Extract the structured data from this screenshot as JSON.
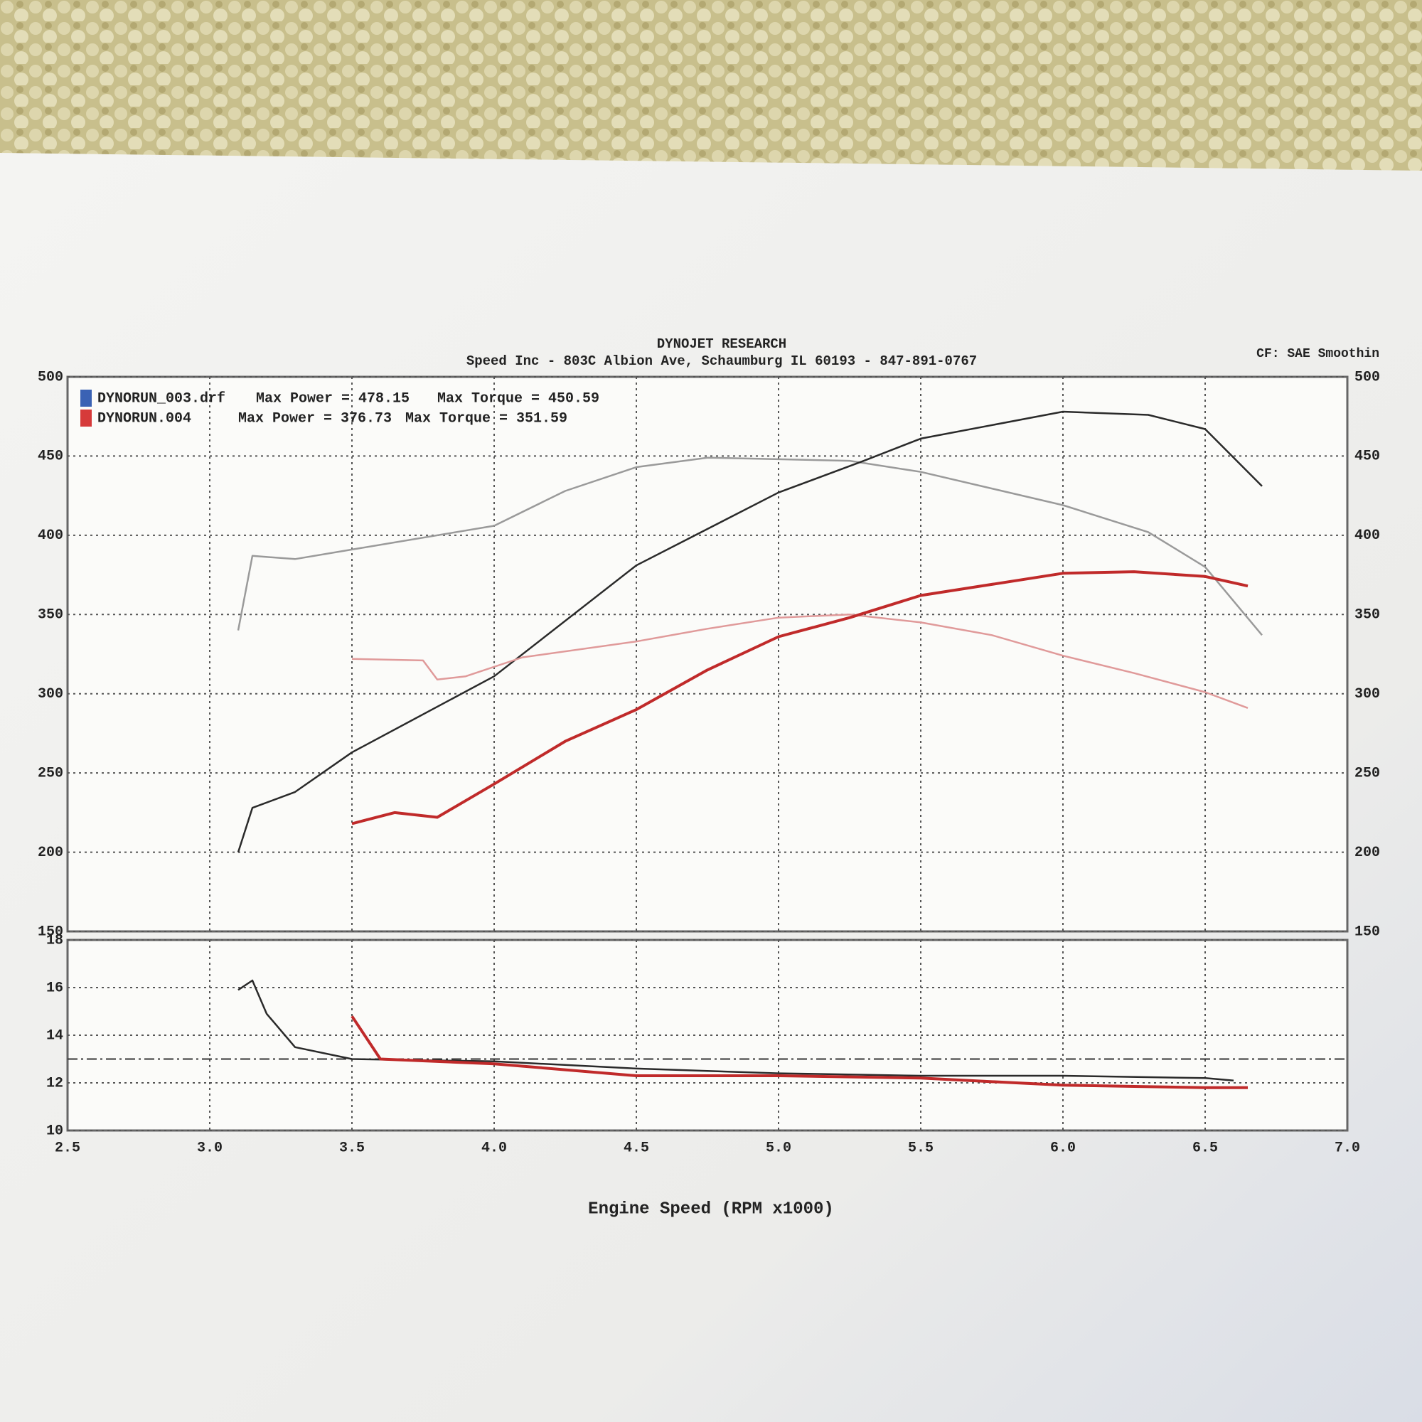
{
  "chart_data": [
    {
      "type": "line",
      "title": "DYNOJET RESEARCH",
      "subtitle": "Speed Inc - 803C Albion Ave, Schaumburg IL 60193 - 847-891-0767",
      "corner_note": "CF: SAE Smoothin",
      "xlim": [
        2.5,
        7.0
      ],
      "ylim": [
        150,
        500
      ],
      "yticks": [
        150,
        200,
        250,
        300,
        350,
        400,
        450,
        500
      ],
      "y2lim": [
        150,
        500
      ],
      "y2ticks": [
        150,
        200,
        250,
        300,
        350,
        400,
        450,
        500
      ],
      "grid": true,
      "runs": [
        {
          "name": "DYNORUN_003.drf",
          "color": "#3a62b4",
          "max_power_text": "Max Power = 478.15",
          "max_torque_text": "Max Torque = 450.59",
          "power": {
            "color": "#2a2a2a",
            "x": [
              3.1,
              3.15,
              3.3,
              3.5,
              4.0,
              4.5,
              5.0,
              5.3,
              5.5,
              6.0,
              6.3,
              6.5,
              6.7
            ],
            "values": [
              200,
              228,
              238,
              263,
              311,
              381,
              427,
              447,
              461,
              478,
              476,
              467,
              431
            ]
          },
          "torque": {
            "color": "#9a9a9a",
            "x": [
              3.1,
              3.15,
              3.3,
              3.5,
              4.0,
              4.25,
              4.5,
              4.75,
              5.0,
              5.25,
              5.5,
              6.0,
              6.3,
              6.5,
              6.7
            ],
            "values": [
              340,
              387,
              385,
              391,
              406,
              428,
              443,
              449,
              448,
              447,
              440,
              419,
              402,
              380,
              337
            ]
          }
        },
        {
          "name": "DYNORUN.004",
          "color": "#d63a3a",
          "max_power_text": "Max Power = 376.73",
          "max_torque_text": "Max Torque = 351.59",
          "power": {
            "color": "#c02a2a",
            "x": [
              3.5,
              3.65,
              3.8,
              4.0,
              4.25,
              4.5,
              4.75,
              5.0,
              5.25,
              5.5,
              5.75,
              6.0,
              6.25,
              6.5,
              6.65
            ],
            "values": [
              218,
              225,
              222,
              243,
              270,
              290,
              315,
              336,
              348,
              362,
              369,
              376,
              377,
              374,
              368
            ]
          },
          "torque": {
            "color": "#e09a9a",
            "x": [
              3.5,
              3.75,
              3.8,
              3.9,
              4.1,
              4.5,
              4.75,
              5.0,
              5.25,
              5.5,
              5.75,
              6.0,
              6.25,
              6.5,
              6.65
            ],
            "values": [
              322,
              321,
              309,
              311,
              323,
              333,
              341,
              348,
              350,
              345,
              337,
              324,
              313,
              301,
              291
            ]
          }
        }
      ]
    },
    {
      "type": "line",
      "x_label": "Engine Speed (RPM x1000)",
      "xlim": [
        2.5,
        7.0
      ],
      "xticks": [
        2.5,
        {
          "value": 3.0,
          "label": "3.0"
        },
        3.5,
        {
          "value": 4.0,
          "label": "4.0"
        },
        4.5,
        {
          "value": 5.0,
          "label": "5.0"
        },
        5.5,
        {
          "value": 6.0,
          "label": "6.0"
        },
        6.5,
        {
          "value": 7.0,
          "label": "7.0"
        }
      ],
      "ylim": [
        10,
        18
      ],
      "yticks": [
        10,
        12,
        14,
        16,
        18
      ],
      "grid": true,
      "reference_line": 13,
      "runs": [
        {
          "color": "#2a2a2a",
          "x": [
            3.1,
            3.15,
            3.2,
            3.3,
            3.5,
            4.0,
            4.5,
            5.0,
            5.5,
            6.0,
            6.5,
            6.6
          ],
          "values": [
            15.9,
            16.3,
            14.9,
            13.5,
            13.0,
            12.9,
            12.6,
            12.4,
            12.3,
            12.3,
            12.2,
            12.1
          ]
        },
        {
          "color": "#c02a2a",
          "x": [
            3.5,
            3.6,
            4.0,
            4.5,
            5.0,
            5.5,
            6.0,
            6.5,
            6.65
          ],
          "values": [
            14.8,
            13.0,
            12.8,
            12.3,
            12.3,
            12.2,
            11.9,
            11.8,
            11.8
          ]
        }
      ]
    }
  ]
}
